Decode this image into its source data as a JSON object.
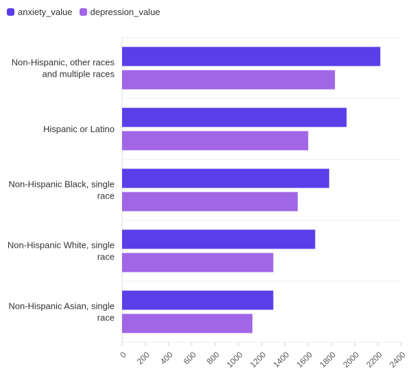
{
  "legend": {
    "items": [
      {
        "label": "anxiety_value",
        "color": "#5a3ee8"
      },
      {
        "label": "depression_value",
        "color": "#a066e6"
      }
    ]
  },
  "chart_data": {
    "type": "bar",
    "orientation": "horizontal",
    "categories": [
      [
        "Non-Hispanic, other races",
        "and multiple races"
      ],
      [
        "Hispanic or Latino"
      ],
      [
        "Non-Hispanic Black, single",
        "race"
      ],
      [
        "Non-Hispanic White, single",
        "race"
      ],
      [
        "Non-Hispanic Asian, single",
        "race"
      ]
    ],
    "series": [
      {
        "name": "anxiety_value",
        "color": "#5a3ee8",
        "values": [
          2220,
          1930,
          1780,
          1660,
          1300
        ]
      },
      {
        "name": "depression_value",
        "color": "#a066e6",
        "values": [
          1830,
          1600,
          1510,
          1300,
          1120
        ]
      }
    ],
    "xlim": [
      0,
      2400
    ],
    "xticks": [
      0,
      200,
      400,
      600,
      800,
      1000,
      1200,
      1400,
      1600,
      1800,
      2000,
      2200,
      2400
    ],
    "grid": true,
    "legend_position": "top-left",
    "title": "",
    "xlabel": "",
    "ylabel": ""
  }
}
